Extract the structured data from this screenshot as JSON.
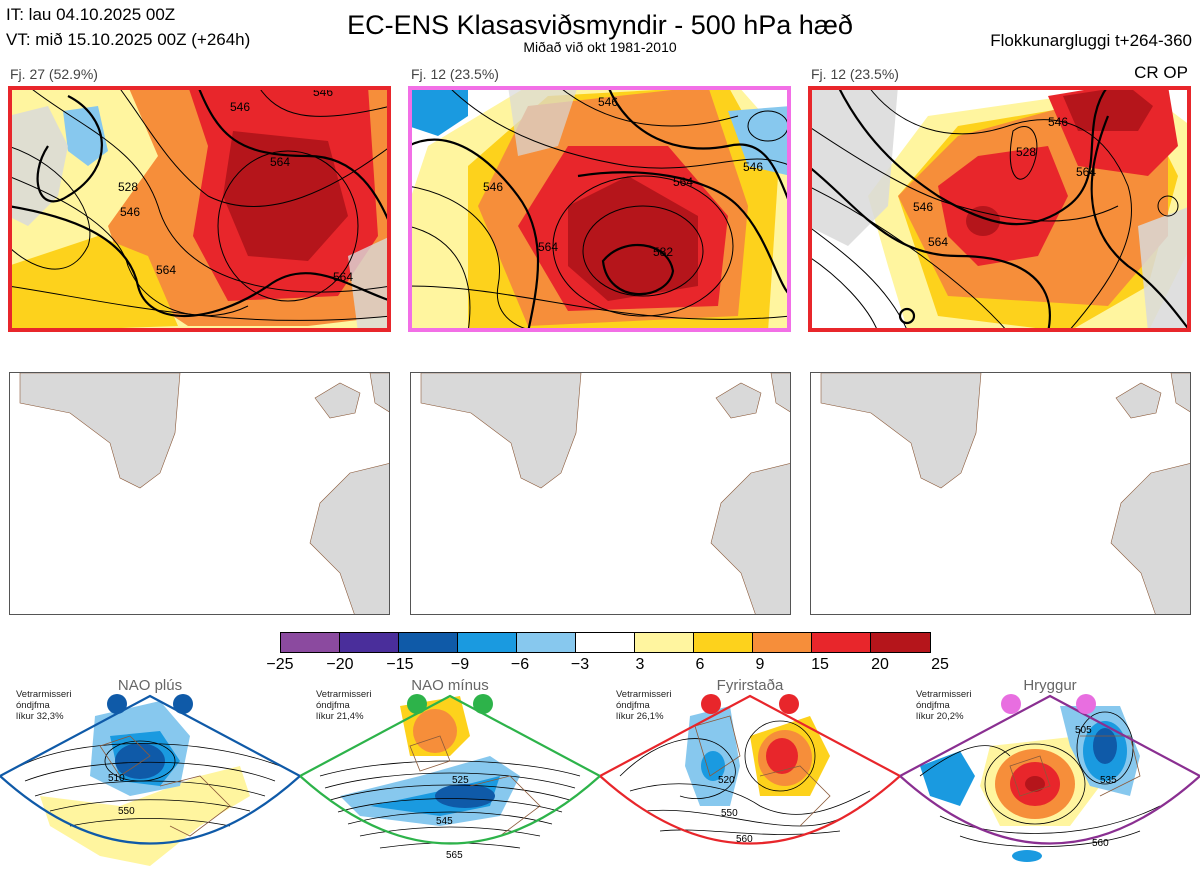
{
  "header": {
    "it_line": "IT: lau 04.10.2025 00Z",
    "vt_line": "VT: mið 15.10.2025 00Z  (+264h)",
    "title": "EC-ENS Klasasviðsmyndir - 500 hPa hæð",
    "subtitle": "Miðað við okt 1981-2010",
    "window": "Flokkunargluggi t+264-360"
  },
  "panels": [
    {
      "label": "Fj. 27 (52.9%)",
      "frame_color": "#e8262b",
      "extra": "",
      "contours": [
        "564",
        "546",
        "564",
        "546",
        "528",
        "564",
        "546"
      ]
    },
    {
      "label": "Fj. 12 (23.5%)",
      "frame_color": "#f26fe6",
      "extra": "",
      "contours": [
        "546",
        "564",
        "546",
        "564",
        "582",
        "546"
      ]
    },
    {
      "label": "Fj. 12 (23.5%)",
      "frame_color": "#e8262b",
      "extra": "CR OP",
      "contours": [
        "546",
        "528",
        "564",
        "546",
        "564"
      ]
    }
  ],
  "colorbar": {
    "colors": [
      "#8b4a9f",
      "#4a2e9b",
      "#0f5aa8",
      "#1a9ae0",
      "#87c8ee",
      "#ffffff",
      "#fff59f",
      "#fdd21c",
      "#f68e3a",
      "#e8262b",
      "#b5151b"
    ],
    "ticks": [
      "−25",
      "−20",
      "−15",
      "−9",
      "−6",
      "−3",
      "3",
      "6",
      "9",
      "15",
      "20",
      "25"
    ]
  },
  "regimes": [
    {
      "name": "NAO plús",
      "note": [
        "Vetrarmisseri",
        "óndjfma",
        "líkur 32,3%"
      ],
      "color": "#0f5aa8",
      "contours": [
        "510",
        "550"
      ]
    },
    {
      "name": "NAO mínus",
      "note": [
        "Vetrarmisseri",
        "óndjfma",
        "líkur 21,4%"
      ],
      "color": "#2db34a",
      "contours": [
        "525",
        "545",
        "565"
      ]
    },
    {
      "name": "Fyrirstaða",
      "note": [
        "Vetrarmisseri",
        "óndjfma",
        "líkur 26,1%"
      ],
      "color": "#e8262b",
      "contours": [
        "520",
        "550",
        "560"
      ]
    },
    {
      "name": "Hryggur",
      "note": [
        "Vetrarmisseri",
        "óndjfma",
        "líkur 20,2%"
      ],
      "color": "#8a2f91",
      "contours": [
        "505",
        "535",
        "560"
      ]
    }
  ]
}
